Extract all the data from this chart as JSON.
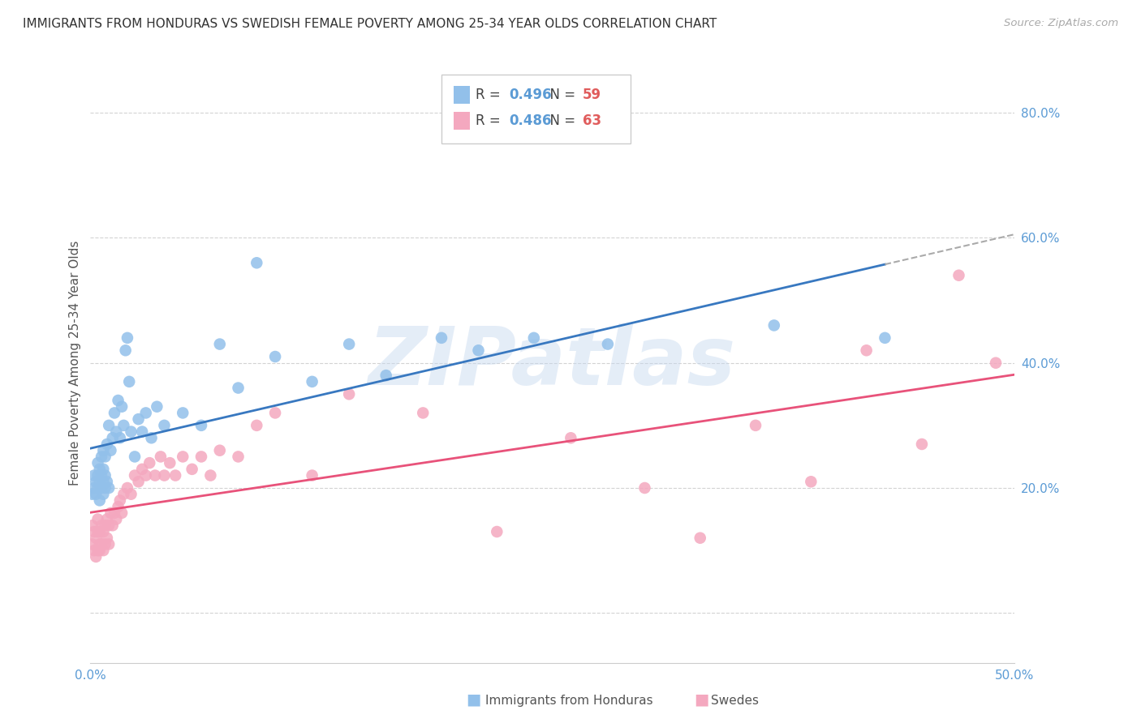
{
  "title": "IMMIGRANTS FROM HONDURAS VS SWEDISH FEMALE POVERTY AMONG 25-34 YEAR OLDS CORRELATION CHART",
  "source": "Source: ZipAtlas.com",
  "ylabel": "Female Poverty Among 25-34 Year Olds",
  "xlim": [
    0.0,
    0.5
  ],
  "ylim": [
    -0.08,
    0.88
  ],
  "yticks": [
    0.0,
    0.2,
    0.4,
    0.6,
    0.8
  ],
  "xticks": [
    0.0,
    0.1,
    0.2,
    0.3,
    0.4,
    0.5
  ],
  "ytick_labels": [
    "",
    "20.0%",
    "40.0%",
    "60.0%",
    "80.0%"
  ],
  "xtick_labels": [
    "0.0%",
    "",
    "",
    "",
    "",
    "50.0%"
  ],
  "background_color": "#ffffff",
  "grid_color": "#c8c8c8",
  "watermark": "ZIPatlas",
  "series1_name": "Immigrants from Honduras",
  "series1_color": "#92c0ea",
  "series1_line_color": "#3878c0",
  "series1_R": 0.496,
  "series1_N": 59,
  "series2_name": "Swedes",
  "series2_color": "#f4a8bf",
  "series2_line_color": "#e8527a",
  "series2_R": 0.486,
  "series2_N": 63,
  "series1_x": [
    0.001,
    0.002,
    0.002,
    0.003,
    0.003,
    0.004,
    0.004,
    0.004,
    0.005,
    0.005,
    0.005,
    0.006,
    0.006,
    0.006,
    0.007,
    0.007,
    0.007,
    0.007,
    0.008,
    0.008,
    0.008,
    0.009,
    0.009,
    0.01,
    0.01,
    0.011,
    0.012,
    0.013,
    0.014,
    0.015,
    0.016,
    0.017,
    0.018,
    0.019,
    0.02,
    0.021,
    0.022,
    0.024,
    0.026,
    0.028,
    0.03,
    0.033,
    0.036,
    0.04,
    0.05,
    0.06,
    0.07,
    0.08,
    0.09,
    0.1,
    0.12,
    0.14,
    0.16,
    0.19,
    0.21,
    0.24,
    0.28,
    0.37,
    0.43
  ],
  "series1_y": [
    0.19,
    0.2,
    0.22,
    0.19,
    0.21,
    0.2,
    0.22,
    0.24,
    0.18,
    0.21,
    0.23,
    0.2,
    0.22,
    0.25,
    0.19,
    0.21,
    0.23,
    0.26,
    0.2,
    0.22,
    0.25,
    0.21,
    0.27,
    0.2,
    0.3,
    0.26,
    0.28,
    0.32,
    0.29,
    0.34,
    0.28,
    0.33,
    0.3,
    0.42,
    0.44,
    0.37,
    0.29,
    0.25,
    0.31,
    0.29,
    0.32,
    0.28,
    0.33,
    0.3,
    0.32,
    0.3,
    0.43,
    0.36,
    0.56,
    0.41,
    0.37,
    0.43,
    0.38,
    0.44,
    0.42,
    0.44,
    0.43,
    0.46,
    0.44
  ],
  "series2_x": [
    0.001,
    0.001,
    0.002,
    0.002,
    0.003,
    0.003,
    0.004,
    0.004,
    0.004,
    0.005,
    0.005,
    0.005,
    0.006,
    0.006,
    0.007,
    0.007,
    0.008,
    0.008,
    0.009,
    0.009,
    0.01,
    0.01,
    0.011,
    0.012,
    0.013,
    0.014,
    0.015,
    0.016,
    0.017,
    0.018,
    0.02,
    0.022,
    0.024,
    0.026,
    0.028,
    0.03,
    0.032,
    0.035,
    0.038,
    0.04,
    0.043,
    0.046,
    0.05,
    0.055,
    0.06,
    0.065,
    0.07,
    0.08,
    0.09,
    0.1,
    0.12,
    0.14,
    0.18,
    0.22,
    0.26,
    0.3,
    0.33,
    0.36,
    0.39,
    0.42,
    0.45,
    0.47,
    0.49
  ],
  "series2_y": [
    0.14,
    0.11,
    0.13,
    0.1,
    0.12,
    0.09,
    0.13,
    0.1,
    0.15,
    0.11,
    0.13,
    0.1,
    0.14,
    0.11,
    0.13,
    0.1,
    0.14,
    0.11,
    0.15,
    0.12,
    0.14,
    0.11,
    0.16,
    0.14,
    0.16,
    0.15,
    0.17,
    0.18,
    0.16,
    0.19,
    0.2,
    0.19,
    0.22,
    0.21,
    0.23,
    0.22,
    0.24,
    0.22,
    0.25,
    0.22,
    0.24,
    0.22,
    0.25,
    0.23,
    0.25,
    0.22,
    0.26,
    0.25,
    0.3,
    0.32,
    0.22,
    0.35,
    0.32,
    0.13,
    0.28,
    0.2,
    0.12,
    0.3,
    0.21,
    0.42,
    0.27,
    0.54,
    0.4
  ],
  "solid_line_end": 0.43,
  "dashed_line_color": "#aaaaaa",
  "legend_R_color": "#5b9bd5",
  "legend_N_color": "#e05c5c"
}
